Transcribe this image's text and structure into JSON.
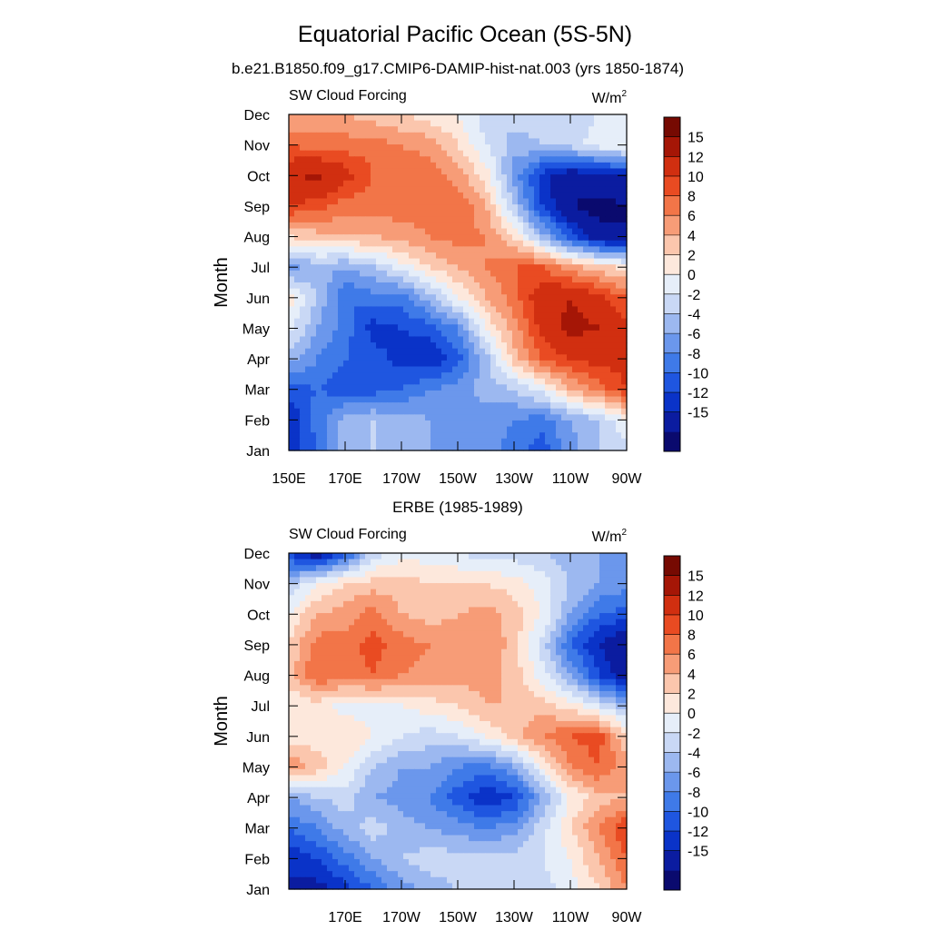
{
  "figure": {
    "title": "Equatorial Pacific Ocean (5S-5N)"
  },
  "colorbar": {
    "colors": [
      "#0a0a6e",
      "#0b1ca0",
      "#0a33c8",
      "#1f56e0",
      "#3f7ae8",
      "#6b97ec",
      "#9cb8f0",
      "#c9d8f5",
      "#e6eef9",
      "#fde8dc",
      "#fbc6ad",
      "#f79c77",
      "#f27548",
      "#e94b22",
      "#d12f10",
      "#a51606",
      "#760a02"
    ],
    "labels": [
      "15",
      "12",
      "10",
      "8",
      "6",
      "4",
      "2",
      "0",
      "-2",
      "-4",
      "-6",
      "-8",
      "-10",
      "-12",
      "-15"
    ]
  },
  "chart_data": [
    {
      "type": "heatmap",
      "title": "b.e21.B1850.f09_g17.CMIP6-DAMIP-hist-nat.003 (yrs 1850-1874)",
      "left_string": "SW Cloud Forcing",
      "units": "W/m",
      "units_sup": "2",
      "ylabel": "Month",
      "x_ticklabels": [
        "150E",
        "170E",
        "170W",
        "150W",
        "130W",
        "110W",
        "90W"
      ],
      "y_ticklabels": [
        "Jan",
        "Feb",
        "Mar",
        "Apr",
        "May",
        "Jun",
        "Jul",
        "Aug",
        "Sep",
        "Oct",
        "Nov",
        "Dec"
      ],
      "xlim": [
        150,
        270
      ],
      "x": [
        150,
        160,
        170,
        180,
        190,
        200,
        210,
        220,
        230,
        240,
        250,
        260,
        270
      ],
      "y": [
        "Jan",
        "Feb",
        "Mar",
        "Apr",
        "May",
        "Jun",
        "Jul",
        "Aug",
        "Sep",
        "Oct",
        "Nov",
        "Dec"
      ],
      "z": [
        [
          -11,
          -8,
          -3,
          -2,
          -3,
          -4,
          -5,
          -5,
          -7,
          -9,
          -5,
          -2,
          -1
        ],
        [
          -12,
          -7,
          -3,
          -2,
          -3,
          -4,
          -5,
          -5,
          -6,
          -7,
          -4,
          -2,
          2
        ],
        [
          -9,
          -8,
          -9,
          -9,
          -8,
          -6,
          -5,
          -3,
          -2,
          1,
          6,
          9,
          12
        ],
        [
          -3,
          -6,
          -8,
          -9,
          -11,
          -12,
          -9,
          -3,
          5,
          10,
          12,
          13,
          13
        ],
        [
          1,
          -4,
          -7,
          -11,
          -10,
          -9,
          -6,
          2,
          7,
          13,
          16,
          15,
          13
        ],
        [
          3,
          -2,
          -8,
          -7,
          -7,
          -3,
          2,
          6,
          9,
          14,
          15,
          13,
          10
        ],
        [
          -5,
          -3,
          -4,
          -2,
          1,
          4,
          6,
          8,
          10,
          10,
          7,
          5,
          3
        ],
        [
          4,
          5,
          6,
          6,
          7,
          8,
          9,
          8,
          4,
          -3,
          -9,
          -14,
          -15
        ],
        [
          12,
          11,
          9,
          9,
          9,
          9,
          10,
          6,
          -2,
          -10,
          -15,
          -16,
          -15
        ],
        [
          14,
          16,
          13,
          10,
          10,
          9,
          7,
          3,
          -5,
          -11,
          -14,
          -13,
          -12
        ],
        [
          10,
          9,
          9,
          9,
          8,
          7,
          4,
          0,
          -3,
          -2,
          -1,
          1,
          2
        ],
        [
          6,
          7,
          6,
          5,
          4,
          3,
          2,
          -1,
          -1,
          -1,
          -1,
          0,
          1
        ]
      ]
    },
    {
      "type": "heatmap",
      "title": "ERBE (1985-1989)",
      "left_string": "SW Cloud Forcing",
      "units": "W/m",
      "units_sup": "2",
      "ylabel": "Month",
      "x_ticklabels": [
        "170E",
        "170W",
        "150W",
        "130W",
        "110W",
        "90W"
      ],
      "y_ticklabels": [
        "Jan",
        "Feb",
        "Mar",
        "Apr",
        "May",
        "Jun",
        "Jul",
        "Aug",
        "Sep",
        "Oct",
        "Nov",
        "Dec"
      ],
      "xlim": [
        150,
        270
      ],
      "x": [
        150,
        160,
        170,
        180,
        190,
        200,
        210,
        220,
        230,
        240,
        250,
        260,
        270
      ],
      "y": [
        "Jan",
        "Feb",
        "Mar",
        "Apr",
        "May",
        "Jun",
        "Jul",
        "Aug",
        "Sep",
        "Oct",
        "Nov",
        "Dec"
      ],
      "z": [
        [
          -12,
          -13,
          -11,
          -8,
          -5,
          -3,
          -2,
          -2,
          -2,
          -1,
          1,
          4,
          8
        ],
        [
          -12,
          -10,
          -7,
          -4,
          -2,
          -1,
          -1,
          -1,
          -1,
          0,
          2,
          6,
          10
        ],
        [
          -8,
          -6,
          -3,
          -1,
          -3,
          -4,
          -5,
          -6,
          -5,
          -1,
          4,
          8,
          12
        ],
        [
          -4,
          -2,
          -1,
          -4,
          -5,
          -6,
          -9,
          -12,
          -10,
          -4,
          2,
          5,
          6
        ],
        [
          8,
          5,
          2,
          -2,
          -4,
          -4,
          -6,
          -7,
          -4,
          2,
          8,
          10,
          7
        ],
        [
          3,
          3,
          4,
          2,
          0,
          -1,
          0,
          2,
          5,
          8,
          10,
          11,
          4
        ],
        [
          2,
          3,
          1,
          1,
          2,
          3,
          4,
          6,
          6,
          5,
          3,
          0,
          -3
        ],
        [
          5,
          10,
          9,
          10,
          8,
          7,
          7,
          7,
          5,
          1,
          -4,
          -10,
          -14
        ],
        [
          4,
          9,
          9,
          11,
          9,
          8,
          7,
          8,
          5,
          -1,
          -8,
          -12,
          -15
        ],
        [
          2,
          6,
          7,
          9,
          6,
          5,
          6,
          7,
          5,
          2,
          -4,
          -8,
          -9
        ],
        [
          -2,
          2,
          4,
          5,
          5,
          4,
          4,
          4,
          3,
          1,
          -2,
          -4,
          -5
        ],
        [
          -10,
          -14,
          -9,
          -1,
          1,
          1,
          0,
          -1,
          -1,
          -2,
          -3,
          -4,
          -6
        ]
      ]
    }
  ]
}
